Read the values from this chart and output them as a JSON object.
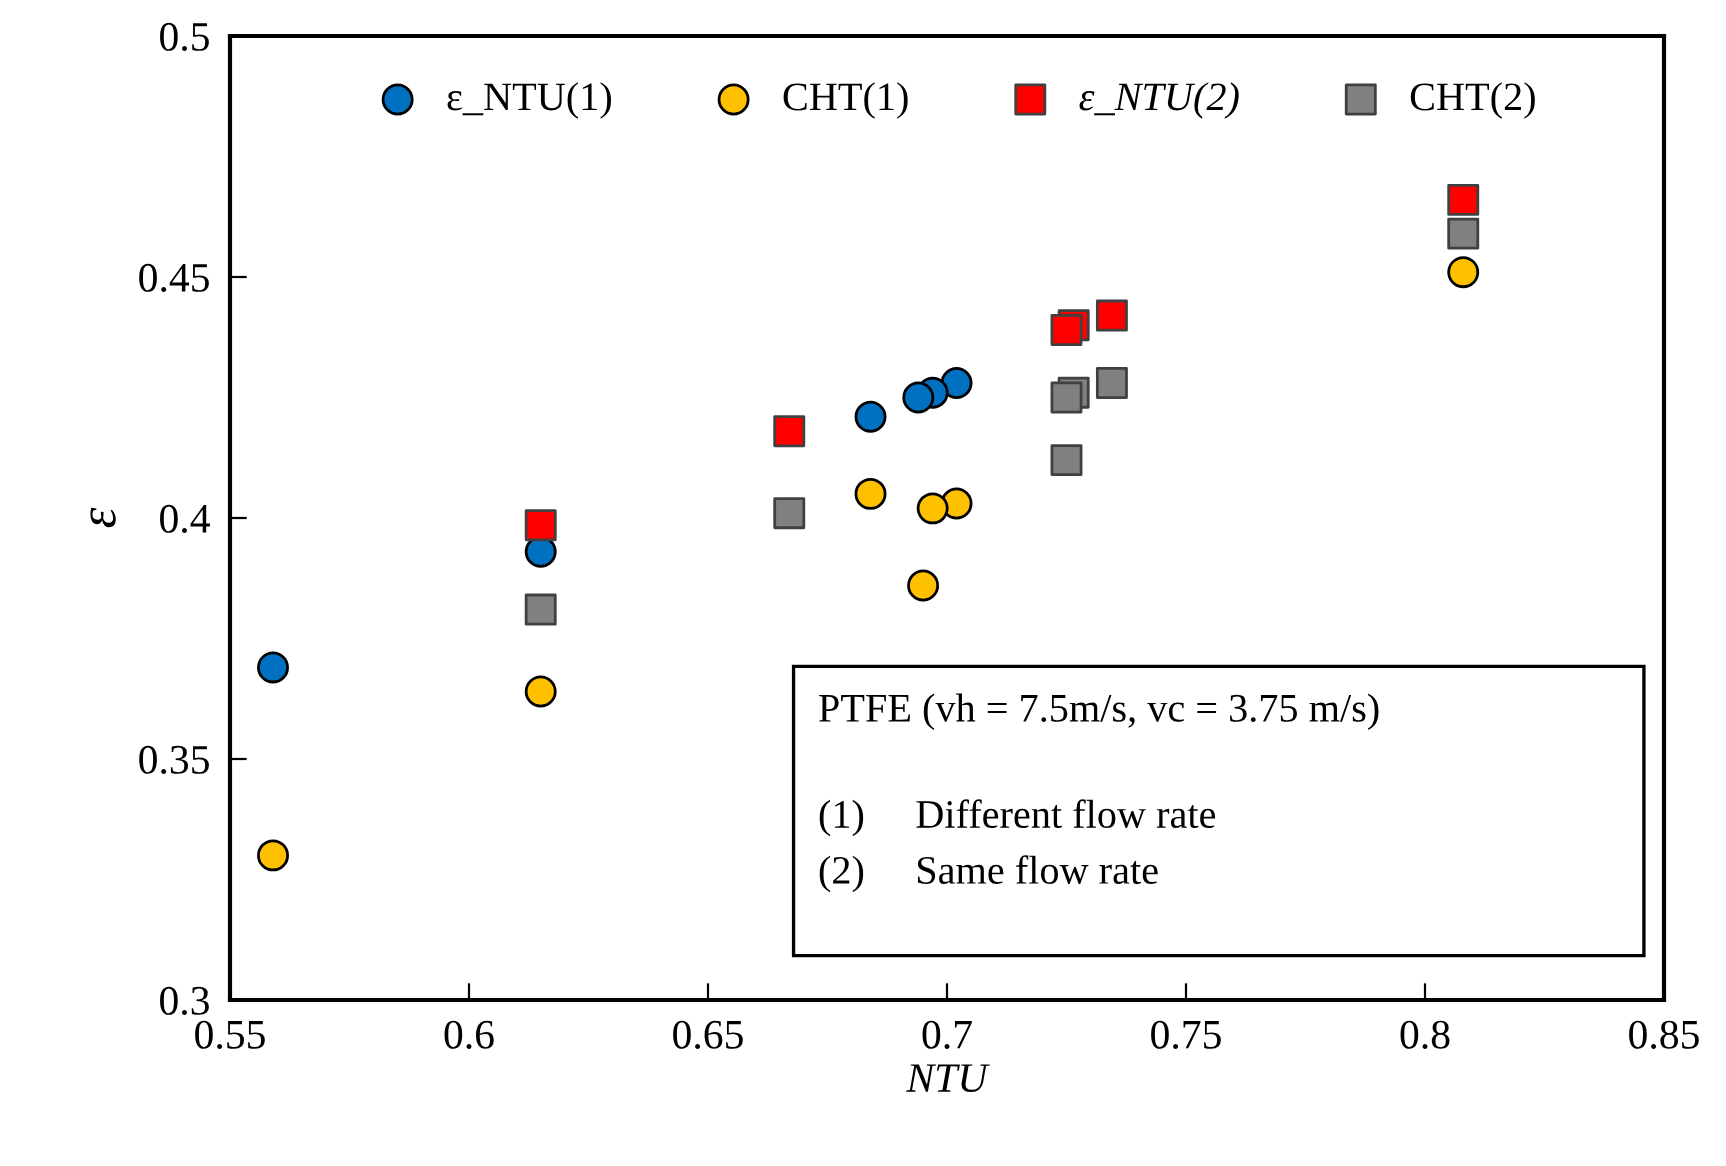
{
  "chart_data": {
    "type": "scatter",
    "xlabel": "NTU",
    "ylabel": "ε",
    "xlim": [
      0.55,
      0.85
    ],
    "xticks": [
      0.55,
      0.6,
      0.65,
      0.7,
      0.75,
      0.8,
      0.85
    ],
    "ylim": [
      0.3,
      0.5
    ],
    "yticks": [
      0.3,
      0.35,
      0.4,
      0.45,
      0.5
    ],
    "grid": false,
    "legend": "top",
    "series": [
      {
        "name": "ε_NTU(1)",
        "color": "#0070c0",
        "marker": "circle",
        "x": [
          0.559,
          0.615,
          0.684,
          0.694,
          0.697,
          0.702
        ],
        "values": [
          0.369,
          0.393,
          0.421,
          0.425,
          0.426,
          0.428
        ]
      },
      {
        "name": "CHT(1)",
        "color": "#ffc000",
        "marker": "circle",
        "x": [
          0.559,
          0.615,
          0.684,
          0.695,
          0.697,
          0.702,
          0.808
        ],
        "values": [
          0.33,
          0.364,
          0.405,
          0.386,
          0.402,
          0.403,
          0.451
        ]
      },
      {
        "name": "ε_NTU(2)",
        "color": "#ff0000",
        "marker": "square",
        "x": [
          0.615,
          0.667,
          0.725,
          0.7265,
          0.7345,
          0.808
        ],
        "values": [
          0.3985,
          0.418,
          0.439,
          0.44,
          0.442,
          0.466
        ]
      },
      {
        "name": "CHT(2)",
        "color": "#808080",
        "marker": "square",
        "x": [
          0.615,
          0.667,
          0.725,
          0.725,
          0.7265,
          0.7345,
          0.808
        ],
        "values": [
          0.381,
          0.401,
          0.412,
          0.425,
          0.426,
          0.428,
          0.459
        ]
      }
    ],
    "annotations": [
      "PTFE (vh = 7.5m/s, vc = 3.75 m/s)",
      "(1)     Different flow rate",
      "(2)     Same flow rate"
    ]
  }
}
